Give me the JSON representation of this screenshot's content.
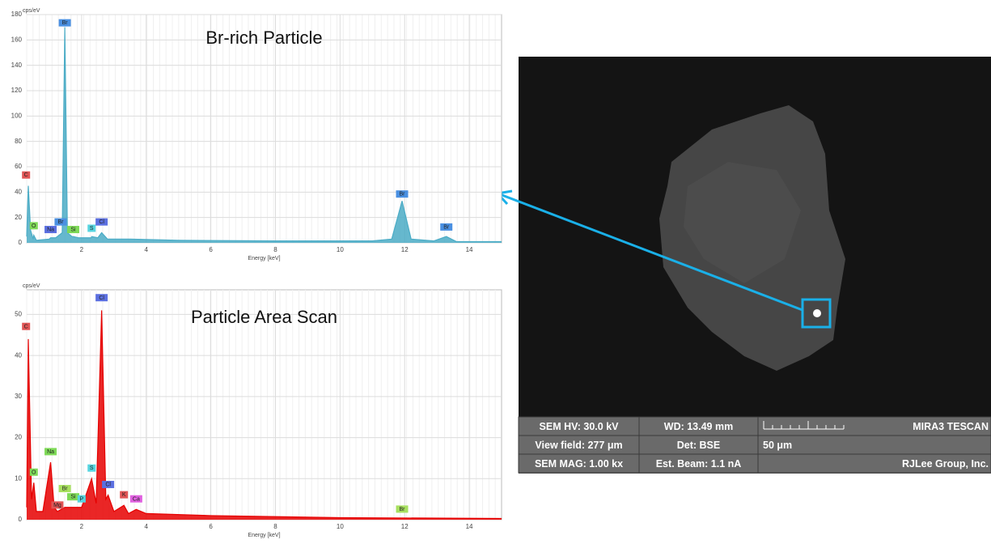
{
  "chart_data": [
    {
      "type": "line",
      "title": "Br-rich Particle",
      "ylabel": "cps/eV",
      "xlabel": "Energy [keV]",
      "xlim": [
        0.3,
        15
      ],
      "xticks": [
        2,
        4,
        6,
        8,
        10,
        12,
        14
      ],
      "ylim": [
        0,
        180
      ],
      "yticks": [
        0,
        20,
        40,
        60,
        80,
        100,
        120,
        140,
        160,
        180
      ],
      "grid": true,
      "x": [
        0.3,
        0.35,
        0.42,
        0.5,
        0.52,
        0.6,
        1.0,
        1.04,
        1.2,
        1.4,
        1.48,
        1.56,
        1.7,
        1.74,
        1.9,
        2.3,
        2.31,
        2.5,
        2.62,
        2.8,
        3.5,
        5,
        8,
        11,
        11.6,
        11.92,
        12.2,
        12.9,
        13.29,
        13.6,
        15
      ],
      "series": [
        {
          "color": "#4bacc6",
          "values": [
            5,
            45,
            10,
            3,
            6,
            2,
            3,
            4,
            4,
            8,
            170,
            8,
            5,
            5,
            4,
            4,
            5,
            4,
            8,
            3,
            3,
            2,
            1.5,
            1.5,
            3,
            33,
            3,
            1.5,
            5,
            1,
            1
          ]
        }
      ],
      "peak_labels": [
        {
          "text": "C",
          "x": 0.28,
          "y": 50,
          "color": "#e05555"
        },
        {
          "text": "O",
          "x": 0.52,
          "y": 10,
          "color": "#7ed957"
        },
        {
          "text": "Na",
          "x": 1.04,
          "y": 7,
          "color": "#5b6fe0"
        },
        {
          "text": "Br",
          "x": 1.35,
          "y": 13,
          "color": "#4a90e2"
        },
        {
          "text": "Br",
          "x": 1.48,
          "y": 170,
          "color": "#4a90e2"
        },
        {
          "text": "Si",
          "x": 1.74,
          "y": 7,
          "color": "#7ed957"
        },
        {
          "text": "S",
          "x": 2.31,
          "y": 8,
          "color": "#57d5e0"
        },
        {
          "text": "Cl",
          "x": 2.62,
          "y": 13,
          "color": "#5b6fe0"
        },
        {
          "text": "Br",
          "x": 11.92,
          "y": 35,
          "color": "#4a90e2"
        },
        {
          "text": "Br",
          "x": 13.29,
          "y": 9,
          "color": "#4a90e2"
        }
      ]
    },
    {
      "type": "line",
      "title": "Particle Area Scan",
      "ylabel": "cps/eV",
      "xlabel": "Energy [keV]",
      "xlim": [
        0.3,
        15
      ],
      "xticks": [
        2,
        4,
        6,
        8,
        10,
        12,
        14
      ],
      "ylim": [
        0,
        56
      ],
      "yticks": [
        0,
        10,
        20,
        30,
        40,
        50
      ],
      "grid": true,
      "x": [
        0.3,
        0.35,
        0.45,
        0.52,
        0.6,
        0.8,
        1.04,
        1.15,
        1.25,
        1.48,
        1.74,
        2.0,
        2.31,
        2.45,
        2.62,
        2.75,
        2.82,
        3.0,
        3.31,
        3.45,
        3.69,
        4,
        6,
        10,
        15
      ],
      "series": [
        {
          "color": "#e60000",
          "values": [
            3,
            44,
            5,
            9,
            2,
            2,
            14,
            3,
            2,
            3,
            3,
            3,
            10,
            4,
            51,
            5,
            6,
            2,
            3.5,
            1.5,
            2.5,
            1.5,
            1,
            0.5,
            0.3
          ]
        }
      ],
      "peak_labels": [
        {
          "text": "C",
          "x": 0.28,
          "y": 46,
          "color": "#e05555"
        },
        {
          "text": "O",
          "x": 0.52,
          "y": 10.5,
          "color": "#7ed957"
        },
        {
          "text": "Na",
          "x": 1.04,
          "y": 15.5,
          "color": "#7ed957"
        },
        {
          "text": "Mg",
          "x": 1.25,
          "y": 2.5,
          "color": "#e05555"
        },
        {
          "text": "Br",
          "x": 1.48,
          "y": 6.5,
          "color": "#a8e060"
        },
        {
          "text": "Si",
          "x": 1.74,
          "y": 4.5,
          "color": "#7ed957"
        },
        {
          "text": "P",
          "x": 2.0,
          "y": 4,
          "color": "#57d5e0"
        },
        {
          "text": "S",
          "x": 2.31,
          "y": 11.5,
          "color": "#57d5e0"
        },
        {
          "text": "Cl",
          "x": 2.62,
          "y": 53,
          "color": "#5b6fe0"
        },
        {
          "text": "Cl",
          "x": 2.82,
          "y": 7.5,
          "color": "#5b6fe0"
        },
        {
          "text": "K",
          "x": 3.31,
          "y": 5,
          "color": "#e05555"
        },
        {
          "text": "Ca",
          "x": 3.69,
          "y": 4,
          "color": "#e060e0"
        },
        {
          "text": "Br",
          "x": 11.92,
          "y": 1.5,
          "color": "#a8e060"
        }
      ]
    }
  ],
  "sem_image": {
    "info": [
      [
        "SEM HV: 30.0 kV",
        "WD: 13.49 mm",
        "MIRA3 TESCAN"
      ],
      [
        "View field: 277 μm",
        "Det: BSE",
        "50 μm"
      ],
      [
        "SEM MAG: 1.00 kx",
        "Est. Beam: 1.1 nA",
        "RJLee Group, Inc."
      ]
    ]
  }
}
